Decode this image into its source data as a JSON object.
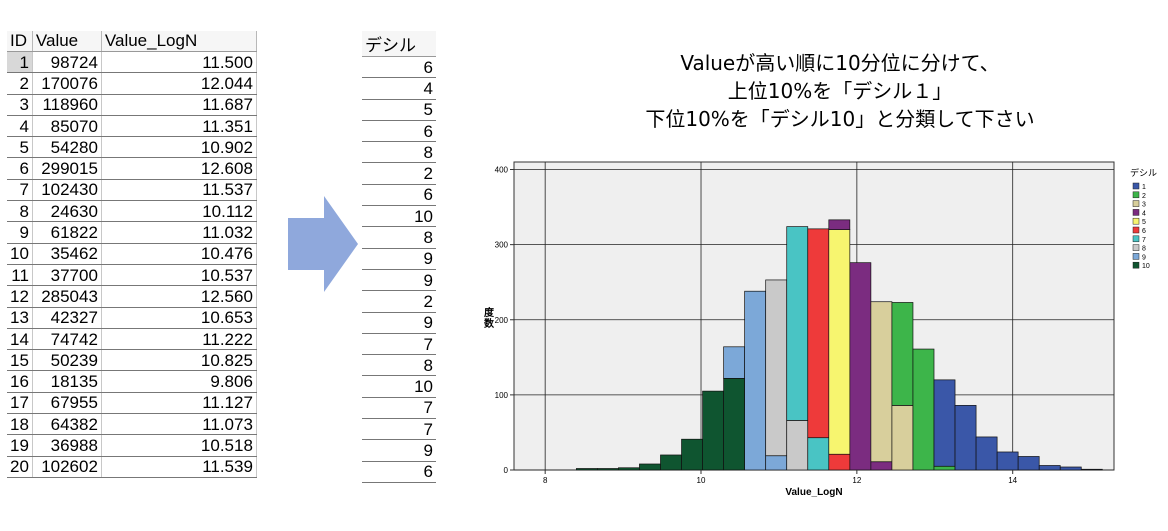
{
  "table": {
    "headers": [
      "ID",
      "Value",
      "Value_LogN"
    ],
    "rows": [
      [
        "1",
        "98724",
        "11.500"
      ],
      [
        "2",
        "170076",
        "12.044"
      ],
      [
        "3",
        "118960",
        "11.687"
      ],
      [
        "4",
        "85070",
        "11.351"
      ],
      [
        "5",
        "54280",
        "10.902"
      ],
      [
        "6",
        "299015",
        "12.608"
      ],
      [
        "7",
        "102430",
        "11.537"
      ],
      [
        "8",
        "24630",
        "10.112"
      ],
      [
        "9",
        "61822",
        "11.032"
      ],
      [
        "10",
        "35462",
        "10.476"
      ],
      [
        "11",
        "37700",
        "10.537"
      ],
      [
        "12",
        "285043",
        "12.560"
      ],
      [
        "13",
        "42327",
        "10.653"
      ],
      [
        "14",
        "74742",
        "11.222"
      ],
      [
        "15",
        "50239",
        "10.825"
      ],
      [
        "16",
        "18135",
        "9.806"
      ],
      [
        "17",
        "67955",
        "11.127"
      ],
      [
        "18",
        "64382",
        "11.073"
      ],
      [
        "19",
        "36988",
        "10.518"
      ],
      [
        "20",
        "102602",
        "11.539"
      ]
    ]
  },
  "decile_table": {
    "header": "デシル",
    "values": [
      "6",
      "4",
      "5",
      "6",
      "8",
      "2",
      "6",
      "10",
      "8",
      "9",
      "9",
      "2",
      "9",
      "7",
      "8",
      "10",
      "7",
      "7",
      "9",
      "6"
    ]
  },
  "arrow": {
    "color": "#8fa8dc",
    "icon": "right-arrow-icon"
  },
  "headline": {
    "line1": "Valueが高い順に10分位に分けて、",
    "line2": "上位10%を「デシル１」",
    "line3": "下位10%を「デシル10」と分類して下さい"
  },
  "chart_data": {
    "type": "bar",
    "subtype": "stacked-histogram",
    "xlabel": "Value_LogN",
    "ylabel": "度数",
    "xlim": [
      7.6,
      15.3
    ],
    "ylim": [
      0,
      410
    ],
    "x_ticks": [
      8,
      10,
      12,
      14
    ],
    "y_ticks": [
      0,
      100,
      200,
      300,
      400
    ],
    "grid": true,
    "legend_title": "デシル",
    "legend_position": "right",
    "series": [
      {
        "name": "1",
        "color": "#3a57a8"
      },
      {
        "name": "2",
        "color": "#3db54a"
      },
      {
        "name": "3",
        "color": "#d8cf9c"
      },
      {
        "name": "4",
        "color": "#7b2c80"
      },
      {
        "name": "5",
        "color": "#f7f56f"
      },
      {
        "name": "6",
        "color": "#ee3a3a"
      },
      {
        "name": "7",
        "color": "#49c4c4"
      },
      {
        "name": "8",
        "color": "#c9c9c9"
      },
      {
        "name": "9",
        "color": "#7ca8d8"
      },
      {
        "name": "10",
        "color": "#0f5530"
      }
    ],
    "bin_width": 0.27,
    "bins": [
      {
        "x0": 8.4,
        "segments": [
          [
            "10",
            2
          ]
        ]
      },
      {
        "x0": 8.67,
        "segments": [
          [
            "10",
            2
          ]
        ]
      },
      {
        "x0": 8.94,
        "segments": [
          [
            "10",
            3
          ]
        ]
      },
      {
        "x0": 9.21,
        "segments": [
          [
            "10",
            8
          ]
        ]
      },
      {
        "x0": 9.48,
        "segments": [
          [
            "10",
            20
          ]
        ]
      },
      {
        "x0": 9.75,
        "segments": [
          [
            "10",
            41
          ]
        ]
      },
      {
        "x0": 10.02,
        "segments": [
          [
            "10",
            105
          ]
        ]
      },
      {
        "x0": 10.29,
        "segments": [
          [
            "10",
            122
          ],
          [
            "9",
            42
          ]
        ]
      },
      {
        "x0": 10.56,
        "segments": [
          [
            "9",
            238
          ]
        ]
      },
      {
        "x0": 10.83,
        "segments": [
          [
            "9",
            19
          ],
          [
            "8",
            234
          ]
        ]
      },
      {
        "x0": 11.1,
        "segments": [
          [
            "8",
            66
          ],
          [
            "7",
            258
          ]
        ]
      },
      {
        "x0": 11.37,
        "segments": [
          [
            "7",
            43
          ],
          [
            "6",
            278
          ]
        ]
      },
      {
        "x0": 11.64,
        "segments": [
          [
            "6",
            21
          ],
          [
            "5",
            299
          ],
          [
            "4",
            13
          ]
        ]
      },
      {
        "x0": 11.91,
        "segments": [
          [
            "4",
            276
          ]
        ]
      },
      {
        "x0": 12.18,
        "segments": [
          [
            "4",
            11
          ],
          [
            "3",
            213
          ]
        ]
      },
      {
        "x0": 12.45,
        "segments": [
          [
            "3",
            86
          ],
          [
            "2",
            137
          ]
        ]
      },
      {
        "x0": 12.72,
        "segments": [
          [
            "2",
            161
          ]
        ]
      },
      {
        "x0": 12.99,
        "segments": [
          [
            "2",
            5
          ],
          [
            "1",
            115
          ]
        ]
      },
      {
        "x0": 13.26,
        "segments": [
          [
            "1",
            86
          ]
        ]
      },
      {
        "x0": 13.53,
        "segments": [
          [
            "1",
            44
          ]
        ]
      },
      {
        "x0": 13.8,
        "segments": [
          [
            "1",
            24
          ]
        ]
      },
      {
        "x0": 14.07,
        "segments": [
          [
            "1",
            18
          ]
        ]
      },
      {
        "x0": 14.34,
        "segments": [
          [
            "1",
            6
          ]
        ]
      },
      {
        "x0": 14.61,
        "segments": [
          [
            "1",
            4
          ]
        ]
      },
      {
        "x0": 14.88,
        "segments": [
          [
            "1",
            1
          ]
        ]
      }
    ]
  }
}
